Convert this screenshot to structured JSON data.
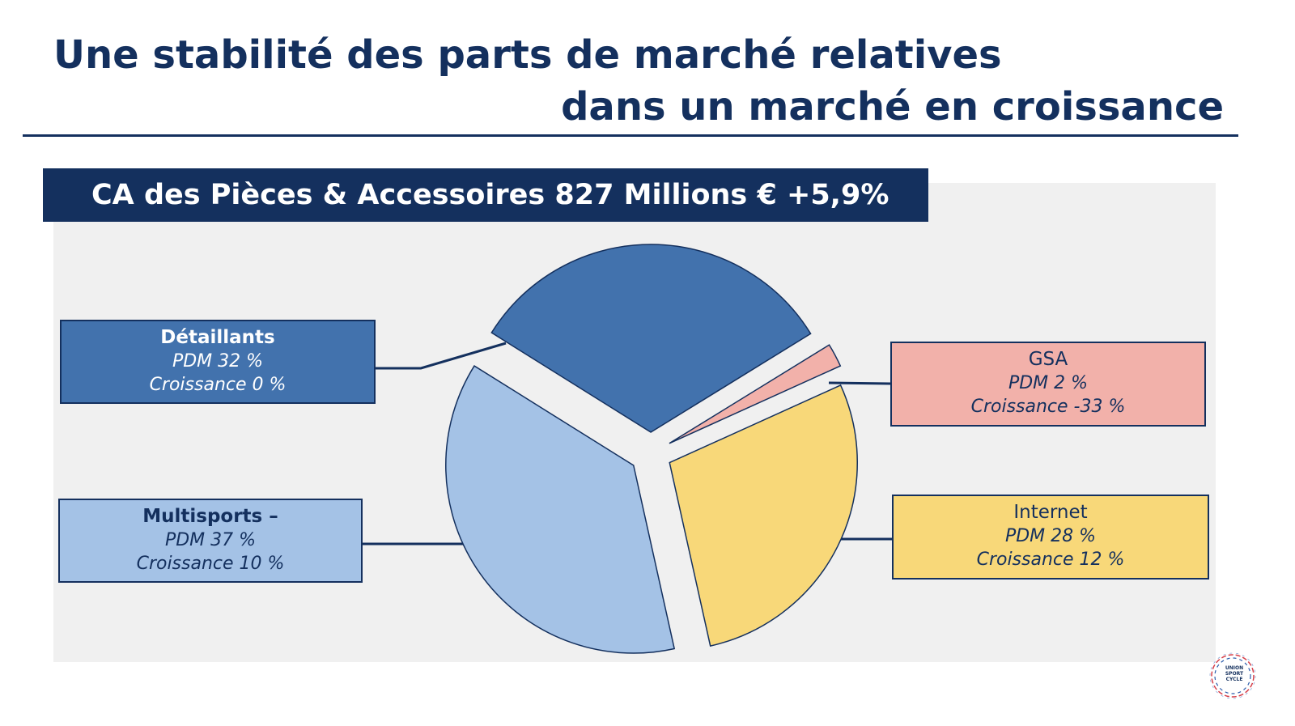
{
  "slide": {
    "title_line1": "Une stabilité des parts de marché relatives",
    "title_line2": "dans un marché en croissance",
    "banner": "CA des Pièces & Accessoires 827 Millions € +5,9%"
  },
  "logo": {
    "text": "UNION SPORT CYCLE"
  },
  "colors": {
    "navy": "#14305e",
    "detaillants": "#4272ad",
    "multisports": "#a4c2e6",
    "gsa": "#f2b1aa",
    "internet": "#f8d879",
    "panel": "#f0f0f0"
  },
  "chart_data": {
    "type": "pie",
    "title": "CA des Pièces & Accessoires 827 Millions € +5,9%",
    "slices": [
      {
        "name": "Détaillants",
        "value": 32,
        "growth": "0 %",
        "pdm_label": "PDM 32 %",
        "growth_label": "Croissance  0 %",
        "color": "#4272ad"
      },
      {
        "name": "GSA",
        "value": 2,
        "growth": "-33 %",
        "pdm_label": "PDM 2 %",
        "growth_label": "Croissance  -33 %",
        "color": "#f2b1aa"
      },
      {
        "name": "Internet",
        "value": 28,
        "growth": "12 %",
        "pdm_label": "PDM 28 %",
        "growth_label": "Croissance  12 %",
        "color": "#f8d879"
      },
      {
        "name": "Multisports –",
        "value": 37,
        "growth": "10 %",
        "pdm_label": "PDM 37 %",
        "growth_label": "Croissance  10 %",
        "color": "#a4c2e6"
      }
    ],
    "exploded": true
  }
}
